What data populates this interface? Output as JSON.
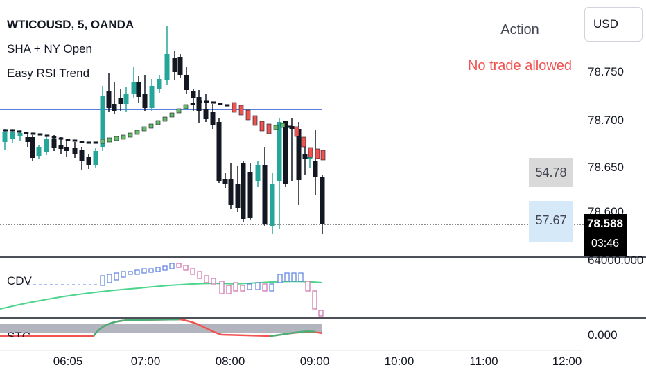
{
  "legend": {
    "symbol": "WTICOUSD, 5, OANDA",
    "indicator_1": "SHA + NY Open",
    "indicator_2": "Easy RSI Trend"
  },
  "currency_button": "USD",
  "action": {
    "title": "Action",
    "value": "No trade allowed"
  },
  "rsi_labels": [
    "54.78",
    "57.67"
  ],
  "current_price": {
    "price": "78.588",
    "countdown": "03:46"
  },
  "price_scale": [
    "78.750",
    "78.700",
    "78.650",
    "78.600"
  ],
  "lower_scale": [
    "64000.000",
    "0.000"
  ],
  "time_axis": [
    "06:05",
    "07:00",
    "08:00",
    "09:00",
    "10:00",
    "11:00",
    "12:00"
  ],
  "panes": {
    "cdv_label": "CDV",
    "stc_label": "STC"
  },
  "colors": {
    "bull": "#26a69a",
    "bear": "#131722",
    "ha_up": "#66bb6a",
    "ha_down": "#ef5350",
    "line_blue": "#5b7fe0",
    "cdv_line": "#4cd48c",
    "stc_red": "#f05350",
    "stc_green": "#4caf78"
  }
}
